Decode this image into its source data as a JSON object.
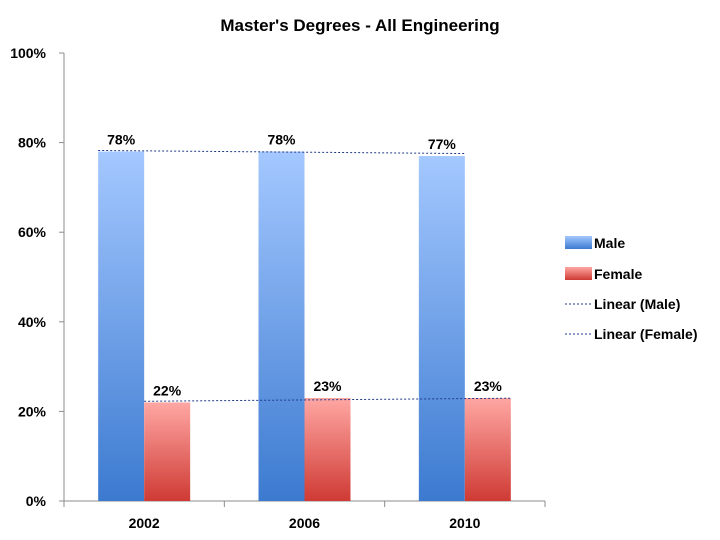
{
  "chart_data": {
    "type": "bar",
    "title": "Master's Degrees - All Engineering",
    "categories": [
      "2002",
      "2006",
      "2010"
    ],
    "series": [
      {
        "name": "Male",
        "values": [
          78,
          78,
          77
        ],
        "labels": [
          "78%",
          "78%",
          "77%"
        ],
        "color_top": "#a4c8ff",
        "color_bottom": "#3c7ad0"
      },
      {
        "name": "Female",
        "values": [
          22,
          23,
          23
        ],
        "labels": [
          "22%",
          "23%",
          "23%"
        ],
        "color_top": "#ffa7a3",
        "color_bottom": "#cf3a34"
      }
    ],
    "trendlines": [
      {
        "name": "Linear (Male)",
        "series": "Male",
        "start": 78.2,
        "end": 77.6
      },
      {
        "name": "Linear (Female)",
        "series": "Female",
        "start": 22.3,
        "end": 22.9
      }
    ],
    "trendline_color": "#1f3a8a",
    "ylim": [
      0,
      100
    ],
    "yticks": [
      0,
      20,
      40,
      60,
      80,
      100
    ],
    "ytick_labels": [
      "0%",
      "20%",
      "40%",
      "60%",
      "80%",
      "100%"
    ],
    "xlabel": "",
    "ylabel": "",
    "legend_position": "right",
    "grid": false
  }
}
